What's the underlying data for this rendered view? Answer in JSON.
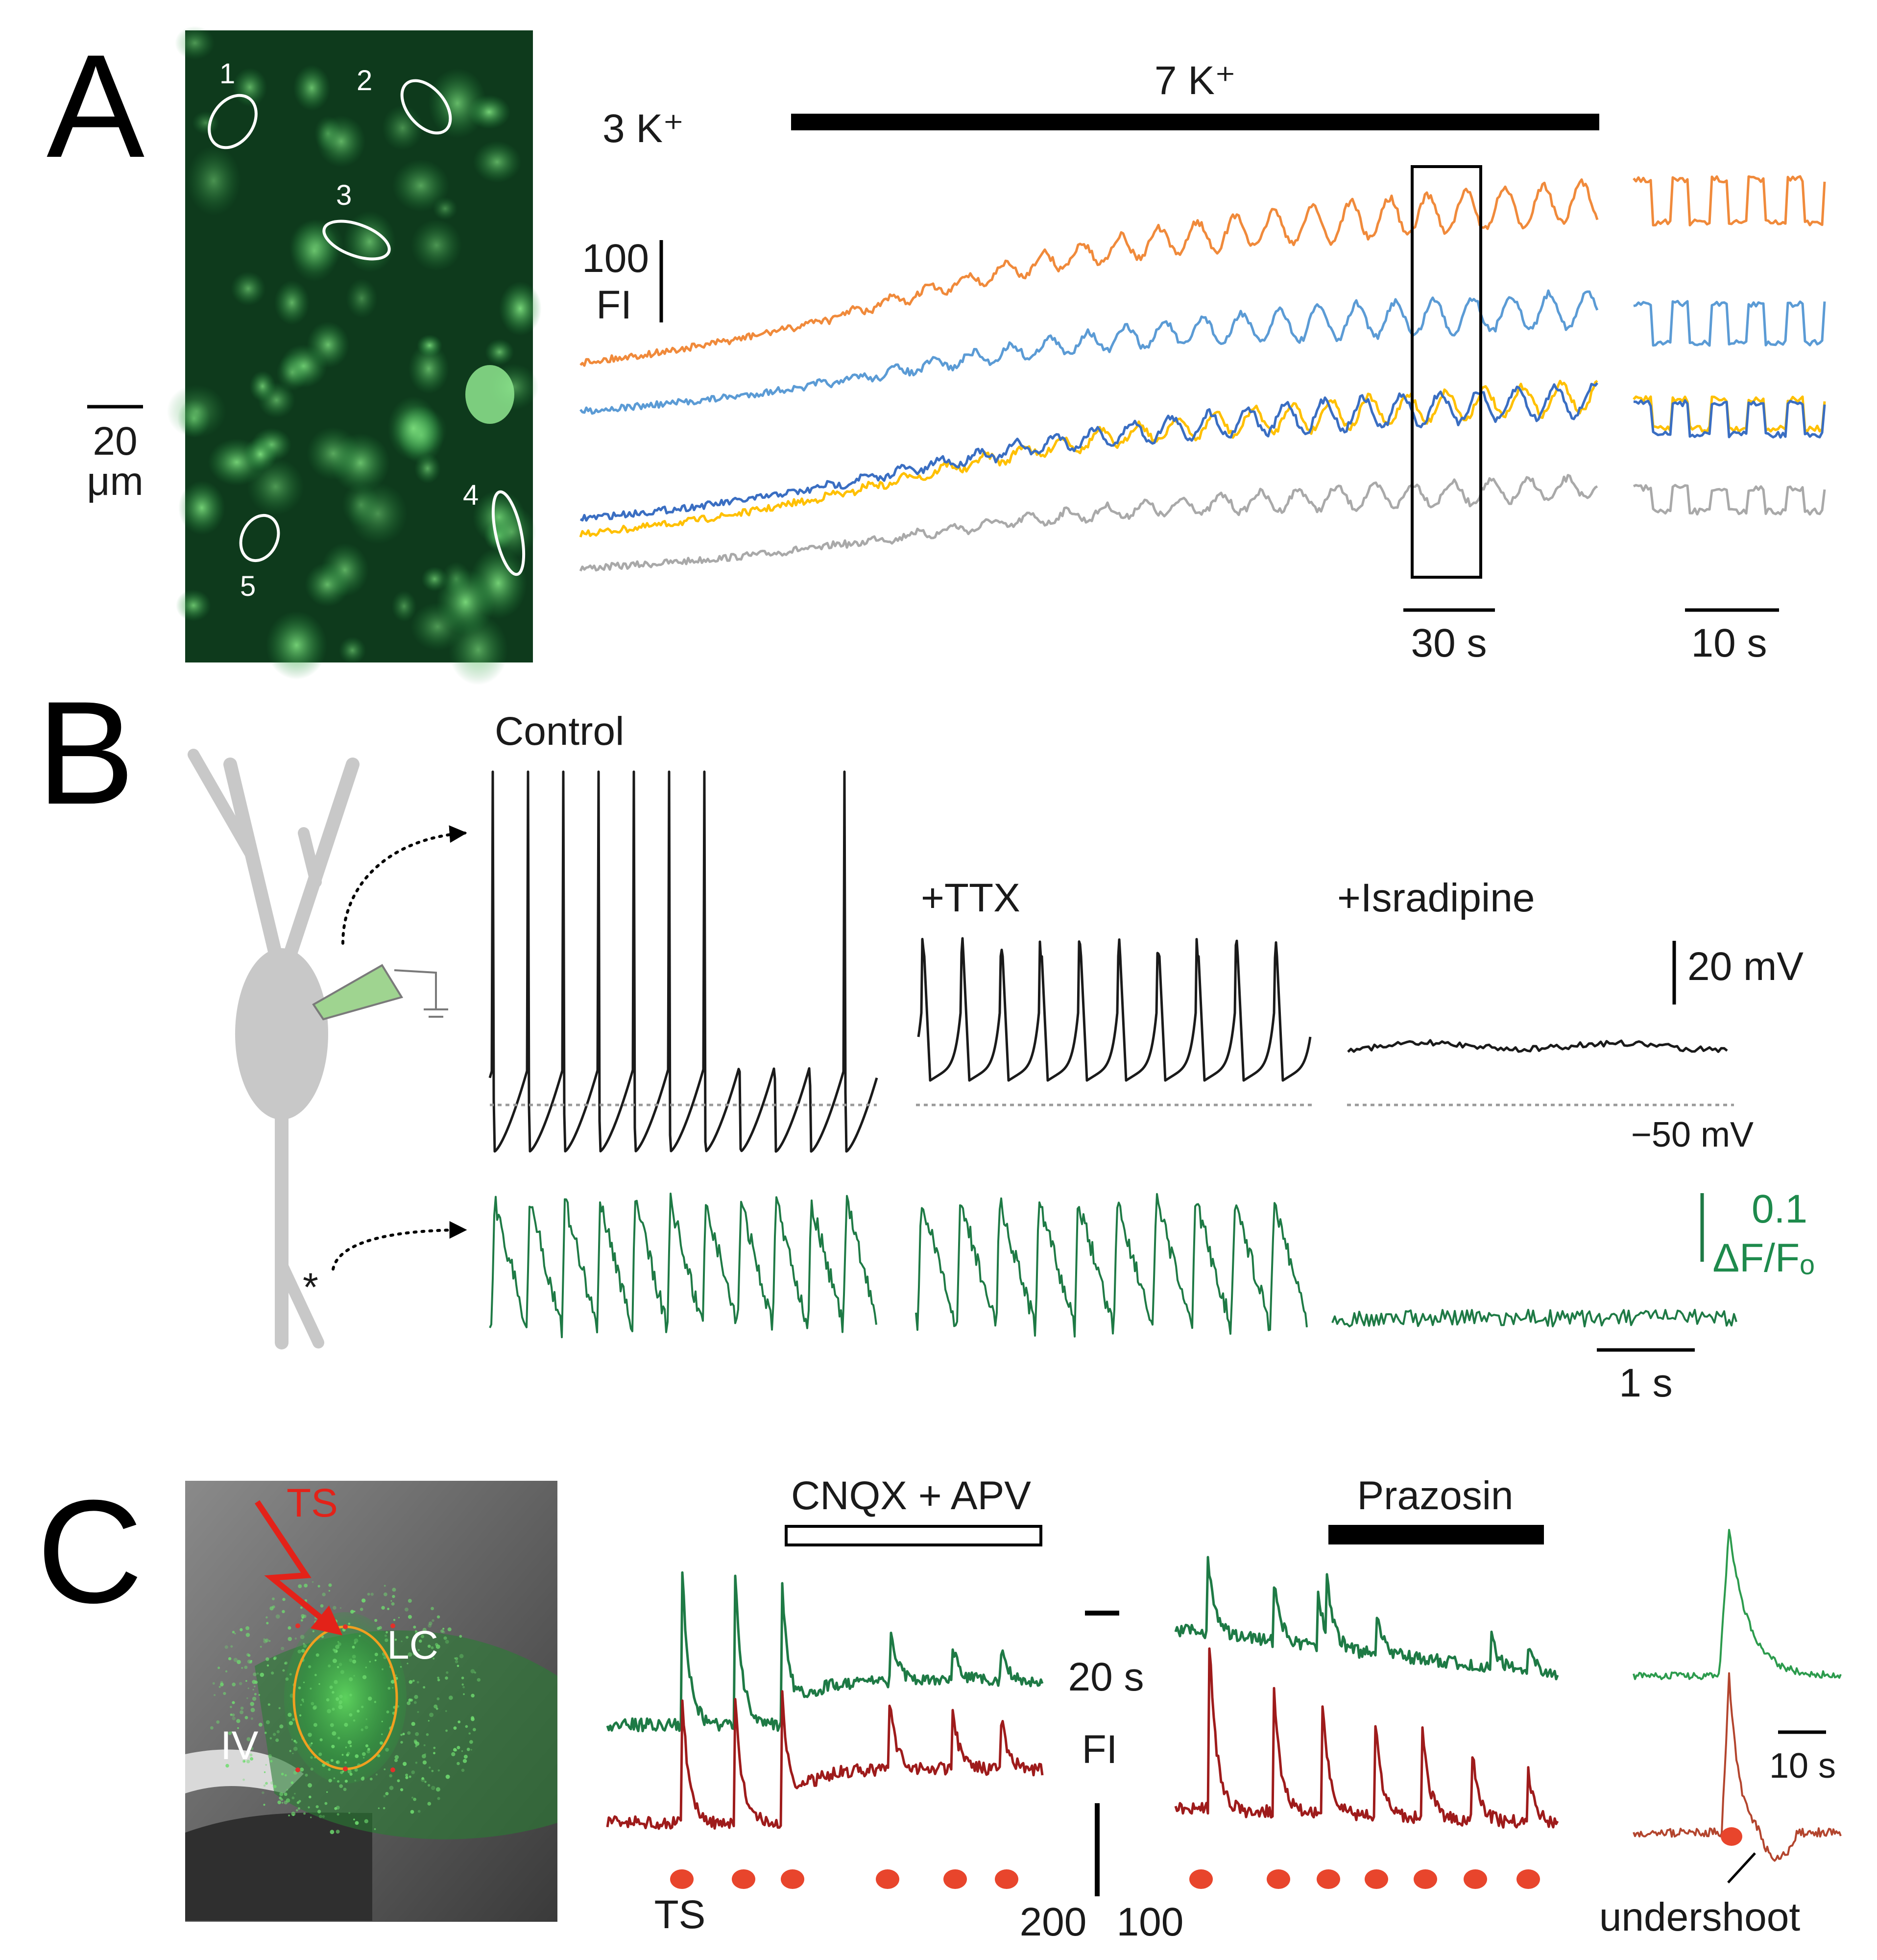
{
  "panelA": {
    "letter": "A",
    "roi_labels": [
      "1",
      "2",
      "3",
      "4",
      "5"
    ],
    "scalebar_image_value": "20",
    "scalebar_image_unit": "μm",
    "baseline_label": "3 K⁺",
    "treatment_label": "7 K⁺",
    "y_scale_value": "100",
    "y_scale_unit": "FI",
    "time_scale_main": "30 s",
    "time_scale_inset": "10 s",
    "trace_colors": [
      "#f08a3b",
      "#5b9bd5",
      "#ffc000",
      "#3a6ec2",
      "#a9a9a9"
    ]
  },
  "panelB": {
    "letter": "B",
    "conditions": [
      "Control",
      "+TTX",
      "+Isradipine"
    ],
    "voltage_scale": "20 mV",
    "voltage_reference": "−50 mV",
    "calcium_scale_value": "0.1",
    "calcium_scale_unit": "ΔF/Fₒ",
    "time_scale": "1 s",
    "recording_site_marker": "*",
    "voltage_color": "#1a1a1a",
    "calcium_color": "#1e7a45"
  },
  "panelC": {
    "letter": "C",
    "stim_label": "TS",
    "region_label": "LC",
    "ventricle_label": "IV",
    "drug1": "CNQX + APV",
    "drug2": "Prazosin",
    "time_scale": "20 s",
    "fl_axis_label": "FI",
    "fl_value_left": "200",
    "fl_value_right": "100",
    "inset_time_scale": "10 s",
    "annotation": "undershoot",
    "stim_marker_label": "TS",
    "stim_color": "#e8452c",
    "green_trace": "#1e7a45",
    "red_trace": "#9e1b1b"
  }
}
